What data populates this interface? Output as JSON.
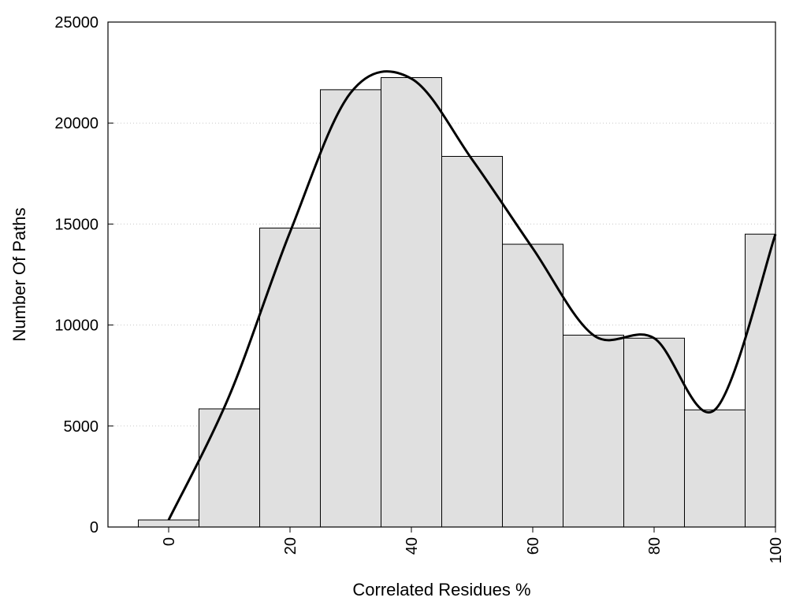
{
  "chart_data": {
    "type": "bar",
    "title": "",
    "xlabel": "Correlated Residues %",
    "ylabel": "Number Of Paths",
    "xlim": [
      -10,
      100
    ],
    "ylim": [
      0,
      25000
    ],
    "bin_width": 10,
    "grid": "horizontal dotted",
    "x_ticks": [
      0,
      20,
      40,
      60,
      80,
      100
    ],
    "x_tick_labels": [
      "0",
      "20",
      "40",
      "60",
      "80",
      "100"
    ],
    "y_ticks": [
      0,
      5000,
      10000,
      15000,
      20000,
      25000
    ],
    "y_tick_labels": [
      "0",
      "5000",
      "10000",
      "15000",
      "20000",
      "25000"
    ],
    "bins": [
      0,
      10,
      20,
      30,
      40,
      50,
      60,
      70,
      80,
      90,
      100
    ],
    "values": [
      350,
      5850,
      14800,
      21650,
      22250,
      18350,
      14000,
      9500,
      9350,
      5800,
      14500
    ],
    "curve": {
      "x": [
        0,
        10,
        20,
        30,
        40,
        50,
        60,
        70,
        80,
        90,
        100
      ],
      "y": [
        350,
        6500,
        14600,
        21500,
        22200,
        18200,
        13800,
        9500,
        9350,
        5800,
        14500
      ]
    },
    "colors": {
      "bar_fill": "#e0e0e0",
      "bar_stroke": "#000000",
      "curve": "#000000",
      "grid": "#c8c8c8"
    }
  }
}
